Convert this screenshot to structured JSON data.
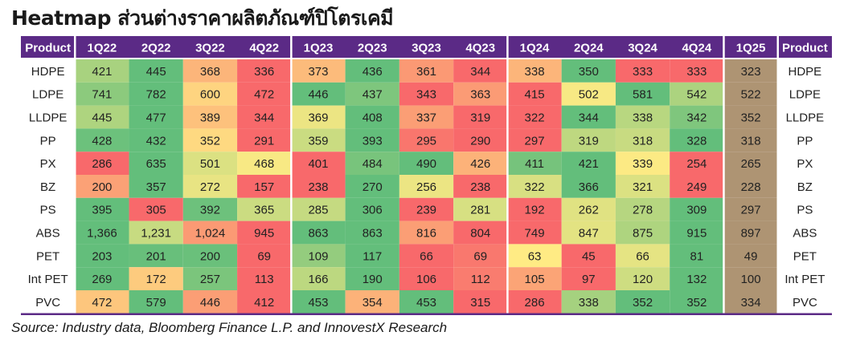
{
  "title": "Heatmap ส่วนต่างราคาผลิตภัณฑ์ปิโตรเคมี",
  "source": "Source: Industry data, Bloomberg Finance L.P. and InnovestX Research",
  "chart_data": {
    "type": "heatmap",
    "row_header_label": "Product",
    "columns": [
      "1Q22",
      "2Q22",
      "3Q22",
      "4Q22",
      "1Q23",
      "2Q23",
      "3Q23",
      "4Q23",
      "1Q24",
      "2Q24",
      "3Q24",
      "4Q24",
      "1Q25"
    ],
    "year_groups": [
      4,
      4,
      4,
      1
    ],
    "rows": [
      {
        "product": "HDPE",
        "values": [
          421,
          445,
          368,
          336,
          373,
          436,
          361,
          344,
          338,
          350,
          333,
          333,
          323
        ]
      },
      {
        "product": "LDPE",
        "values": [
          741,
          782,
          600,
          472,
          446,
          437,
          343,
          363,
          415,
          502,
          581,
          542,
          522
        ]
      },
      {
        "product": "LLDPE",
        "values": [
          445,
          477,
          389,
          344,
          369,
          408,
          337,
          319,
          322,
          344,
          338,
          342,
          352
        ]
      },
      {
        "product": "PP",
        "values": [
          428,
          432,
          352,
          291,
          359,
          393,
          295,
          290,
          297,
          319,
          318,
          328,
          318
        ]
      },
      {
        "product": "PX",
        "values": [
          286,
          635,
          501,
          468,
          401,
          484,
          490,
          426,
          411,
          421,
          339,
          254,
          265
        ]
      },
      {
        "product": "BZ",
        "values": [
          200,
          357,
          272,
          157,
          238,
          270,
          256,
          238,
          322,
          366,
          321,
          249,
          228
        ]
      },
      {
        "product": "PS",
        "values": [
          395,
          305,
          392,
          365,
          285,
          306,
          239,
          281,
          192,
          262,
          278,
          309,
          297
        ]
      },
      {
        "product": "ABS",
        "values": [
          1366,
          1231,
          1024,
          945,
          863,
          863,
          816,
          804,
          749,
          847,
          875,
          915,
          897
        ]
      },
      {
        "product": "PET",
        "values": [
          203,
          201,
          200,
          69,
          109,
          117,
          66,
          69,
          63,
          45,
          66,
          81,
          49
        ]
      },
      {
        "product": "Int PET",
        "values": [
          269,
          172,
          257,
          113,
          166,
          190,
          106,
          112,
          105,
          97,
          120,
          132,
          100
        ]
      },
      {
        "product": "PVC",
        "values": [
          472,
          579,
          446,
          412,
          453,
          354,
          453,
          315,
          286,
          338,
          352,
          352,
          334
        ]
      }
    ],
    "color_scale": {
      "low": "#f8696b",
      "mid": "#ffeb84",
      "high": "#63be7b",
      "basis": "per year group, per row"
    },
    "header_color": "#5b2a86",
    "header_text_color": "#ffffff"
  }
}
